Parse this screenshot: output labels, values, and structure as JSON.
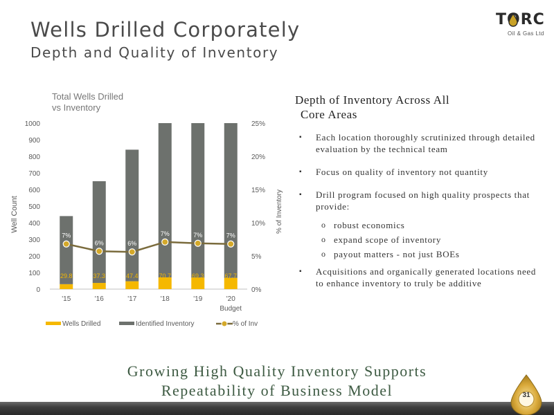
{
  "header": {
    "title": "Wells Drilled Corporately",
    "subtitle": "Depth and Quality of Inventory"
  },
  "logo": {
    "name": "TORC",
    "sub": "Oil & Gas Ltd"
  },
  "colors": {
    "wells_drilled": "#f5b800",
    "identified_inventory": "#6d716d",
    "pct_line": "#7a6b3c",
    "pct_marker": "#d4a92a",
    "footer_text": "#3d5a42"
  },
  "chart_data": {
    "type": "bar",
    "title": "Total Wells Drilled vs Inventory",
    "title_lines": [
      "Total Wells Drilled",
      "vs Inventory"
    ],
    "ylabel": "Well Count",
    "y2label": "% of Inventory",
    "categories": [
      "'15",
      "'16",
      "'17",
      "'18",
      "'19",
      "'20"
    ],
    "category_sublabels": [
      "",
      "",
      "",
      "",
      "",
      "Budget"
    ],
    "ylim": [
      0,
      1000
    ],
    "y_ticks": [
      0,
      100,
      200,
      300,
      400,
      500,
      600,
      700,
      800,
      900,
      1000
    ],
    "y2lim": [
      0,
      25
    ],
    "y2_ticks": [
      "0%",
      "5%",
      "10%",
      "15%",
      "20%",
      "25%"
    ],
    "series": [
      {
        "name": "Wells Drilled",
        "type": "bar",
        "values": [
          29.8,
          37.3,
          47.4,
          70.7,
          69.3,
          67.7
        ],
        "labels": [
          "29.8",
          "37.3",
          "47.4",
          "70.7",
          "69.3",
          "67.7"
        ]
      },
      {
        "name": "Identified Inventory",
        "type": "bar",
        "values": [
          440,
          650,
          840,
          1000,
          1000,
          1000
        ]
      },
      {
        "name": "% of Inv",
        "type": "line",
        "axis": "secondary",
        "values": [
          6.8,
          5.7,
          5.6,
          7.1,
          6.9,
          6.8
        ],
        "labels": [
          "7%",
          "6%",
          "6%",
          "7%",
          "7%",
          "7%"
        ]
      }
    ],
    "grid": false,
    "legend": "bottom"
  },
  "right": {
    "heading_line1": "Depth of Inventory Across All",
    "heading_line2": "Core Areas",
    "bullets": [
      {
        "text": "Each location thoroughly scrutinized through detailed evaluation by the technical team"
      },
      {
        "text": "Focus on quality of inventory not quantity"
      },
      {
        "text": "Drill program focused on high quality prospects that provide:",
        "subs": [
          "robust economics",
          "expand scope of inventory",
          "payout matters - not just BOEs"
        ]
      },
      {
        "text": "Acquisitions and organically generated locations need to enhance inventory to truly be additive"
      }
    ],
    "bullet_mark": "▪",
    "sub_mark": "o"
  },
  "footer": {
    "line1": "Growing High Quality Inventory Supports",
    "line2": "Repeatability of Business Model",
    "page_number": "31"
  }
}
